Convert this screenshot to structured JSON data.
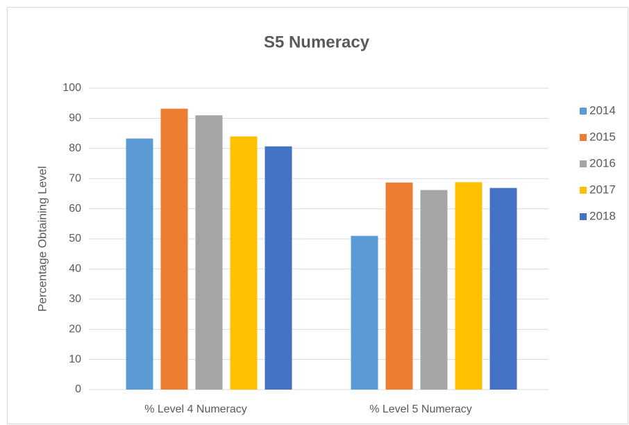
{
  "chart_data": {
    "type": "bar",
    "title": "S5 Numeracy",
    "y_label": "Percentage Obtaining Level",
    "categories": [
      "% Level 4 Numeracy",
      "% Level 5 Numeracy"
    ],
    "series": [
      {
        "name": "2014",
        "color": "#5b9bd5",
        "values": [
          83.3,
          51
        ]
      },
      {
        "name": "2015",
        "color": "#ed7d31",
        "values": [
          93.2,
          68.7
        ]
      },
      {
        "name": "2016",
        "color": "#a5a5a5",
        "values": [
          91,
          66.2
        ]
      },
      {
        "name": "2017",
        "color": "#ffc000",
        "values": [
          84,
          68.8
        ]
      },
      {
        "name": "2018",
        "color": "#4472c4",
        "values": [
          80.7,
          66.9
        ]
      }
    ],
    "ylim": [
      0,
      100
    ],
    "yticks": [
      0,
      10,
      20,
      30,
      40,
      50,
      60,
      70,
      80,
      90,
      100
    ],
    "grid": true,
    "legend": "right"
  }
}
